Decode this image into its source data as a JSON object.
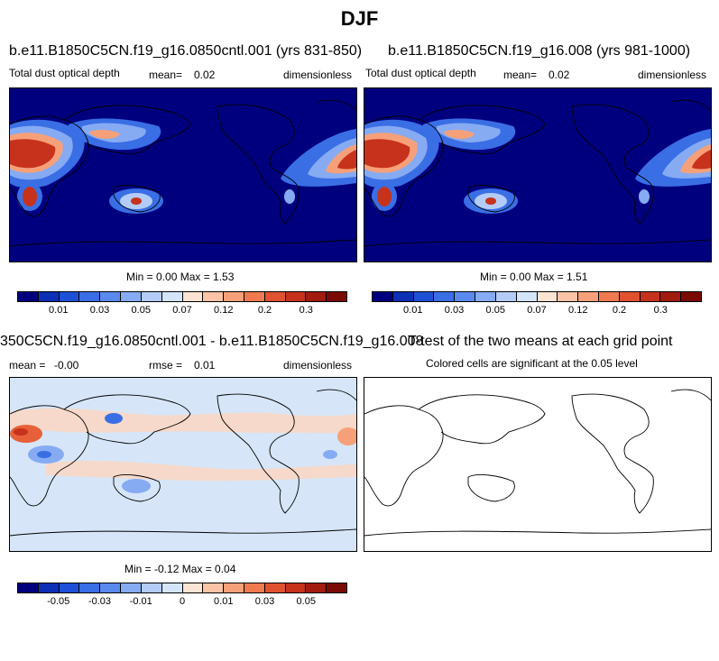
{
  "page": {
    "title": "DJF"
  },
  "panels": {
    "p1": {
      "title": "b.e11.B1850C5CN.f19_g16.0850cntl.001 (yrs 831-850)",
      "left": "Total dust optical depth",
      "center_label": "mean=",
      "center_value": "0.02",
      "right": "dimensionless",
      "minmax": "Min =  0.00 Max =  1.53"
    },
    "p2": {
      "title": "b.e11.B1850C5CN.f19_g16.008 (yrs 981-1000)",
      "left": "Total dust optical depth",
      "center_label": "mean=",
      "center_value": "0.02",
      "right": "dimensionless",
      "minmax": "Min =  0.00 Max =  1.51"
    },
    "p3": {
      "title": "350C5CN.f19_g16.0850cntl.001 - b.e11.B1850C5CN.f19_g16.008",
      "left_label": "mean =",
      "left_value": "-0.00",
      "center_label": "rmse =",
      "center_value": "0.01",
      "right": "dimensionless",
      "minmax": "Min = -0.12 Max =  0.04"
    },
    "p4": {
      "title": "T-test of the two means at each grid point",
      "subtitle": "Colored cells are significant at the 0.05 level"
    }
  },
  "colorbars": {
    "top": {
      "colors": [
        "#00007f",
        "#0d2fb5",
        "#1d50d6",
        "#3a6ee5",
        "#5a8aee",
        "#86abf3",
        "#b3ccf7",
        "#d4e5fa",
        "#fde3d3",
        "#fbc4a6",
        "#f6a07a",
        "#f07a50",
        "#e0522f",
        "#c7321c",
        "#a11b0f",
        "#7a0a05"
      ],
      "labels": [
        "0.01",
        "0.03",
        "0.05",
        "0.07",
        "0.12",
        "0.2",
        "0.3"
      ]
    },
    "bottom": {
      "colors": [
        "#00007f",
        "#0d2fb5",
        "#1d50d6",
        "#3a6ee5",
        "#5a8aee",
        "#86abf3",
        "#b3ccf7",
        "#d4e5fa",
        "#fde3d3",
        "#fbc4a6",
        "#f6a07a",
        "#f07a50",
        "#e0522f",
        "#c7321c",
        "#a11b0f",
        "#7a0a05"
      ],
      "labels": [
        "-0.05",
        "-0.03",
        "-0.01",
        "0",
        "0.01",
        "0.03",
        "0.05"
      ]
    }
  },
  "map_colors": {
    "ocean_dark": "#00007f",
    "light_bg": "#d6e6f8",
    "hot": "#c7321c",
    "mid_red": "#e8603a",
    "pale_red": "#fbd6c2",
    "blue_band": "#3a6ee5"
  }
}
